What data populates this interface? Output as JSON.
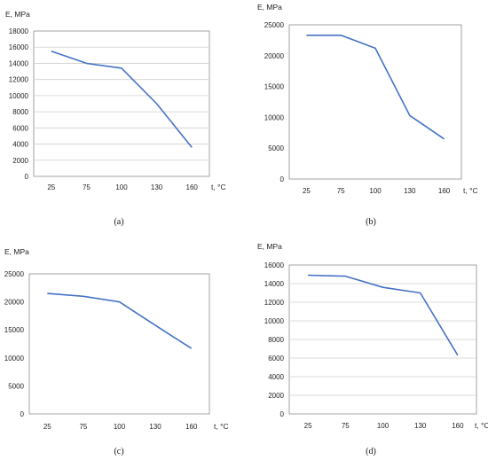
{
  "colors": {
    "line": "#4472C4",
    "grid": "#cfcfcf",
    "axis": "#8c8c8c"
  },
  "chart_data": [
    {
      "type": "line",
      "caption": "(a)",
      "ylabel": "E, MPa",
      "xlabel": "t, °C",
      "categories": [
        "25",
        "75",
        "100",
        "130",
        "160"
      ],
      "values": [
        15500,
        14000,
        13400,
        9000,
        3600
      ],
      "ylim": [
        0,
        18000
      ],
      "yticks": [
        0,
        2000,
        4000,
        6000,
        8000,
        10000,
        12000,
        14000,
        16000,
        18000
      ],
      "grid": true
    },
    {
      "type": "line",
      "caption": "(b)",
      "ylabel": "E, MPa",
      "xlabel": "t, °C",
      "categories": [
        "25",
        "75",
        "100",
        "130",
        "160"
      ],
      "values": [
        23300,
        23300,
        21200,
        10300,
        6500
      ],
      "ylim": [
        0,
        25000
      ],
      "yticks": [
        0,
        5000,
        10000,
        15000,
        20000,
        25000
      ],
      "grid": false
    },
    {
      "type": "line",
      "caption": "(c)",
      "ylabel": "E, MPa",
      "xlabel": "t, °C",
      "categories": [
        "25",
        "75",
        "100",
        "130",
        "160"
      ],
      "values": [
        21500,
        21000,
        20000,
        15800,
        11700
      ],
      "ylim": [
        0,
        25000
      ],
      "yticks": [
        0,
        5000,
        10000,
        15000,
        20000,
        25000
      ],
      "grid": false
    },
    {
      "type": "line",
      "caption": "(d)",
      "ylabel": "E, MPa",
      "xlabel": "t, °C",
      "categories": [
        "25",
        "75",
        "100",
        "130",
        "160"
      ],
      "values": [
        14900,
        14800,
        13600,
        13000,
        6300
      ],
      "ylim": [
        0,
        16000
      ],
      "yticks": [
        0,
        2000,
        4000,
        6000,
        8000,
        10000,
        12000,
        14000,
        16000
      ],
      "grid": true
    }
  ]
}
